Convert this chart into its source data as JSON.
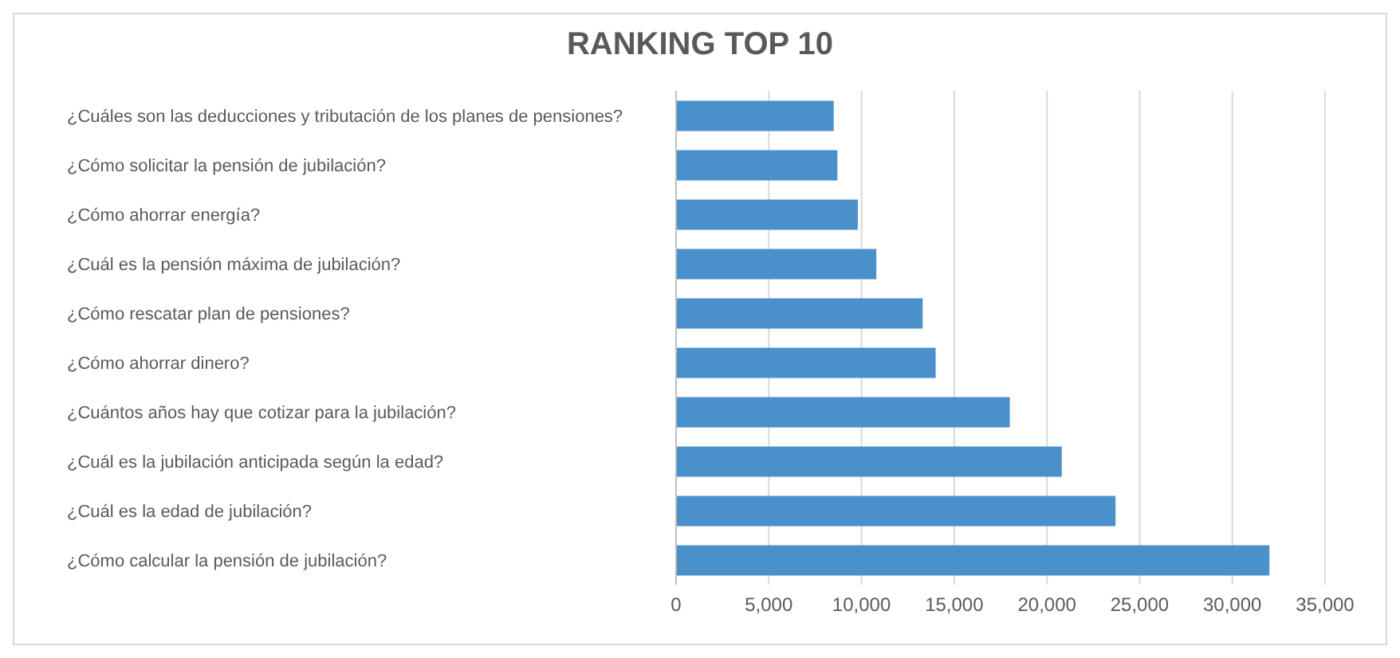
{
  "chart_data": {
    "type": "bar",
    "orientation": "horizontal",
    "title": "RANKING TOP 10",
    "categories": [
      "¿Cuáles son las deducciones y tributación de los planes de pensiones?",
      "¿Cómo solicitar la pensión de jubilación?",
      "¿Cómo ahorrar energía?",
      "¿Cuál es la pensión máxima de jubilación?",
      "¿Cómo rescatar plan de pensiones?",
      "¿Cómo ahorrar dinero?",
      "¿Cuántos años hay que cotizar para la jubilación?",
      "¿Cuál es la jubilación anticipada según la edad?",
      "¿Cuál es la edad de jubilación?",
      "¿Cómo calcular la pensión de jubilación?"
    ],
    "values": [
      8500,
      8700,
      9800,
      10800,
      13300,
      14000,
      18000,
      20800,
      23700,
      32000
    ],
    "color": "#4a90cb",
    "xlim": [
      0,
      35000
    ],
    "xticks": [
      0,
      {
        "value": 5000,
        "label": "5,000"
      },
      {
        "value": 10000,
        "label": "10,000"
      },
      {
        "value": 15000,
        "label": "15,000"
      },
      {
        "value": 20000,
        "label": "20,000"
      },
      {
        "value": 25000,
        "label": "25,000"
      },
      {
        "value": 30000,
        "label": "30,000"
      },
      {
        "value": 35000,
        "label": "35,000"
      }
    ],
    "grid": "x",
    "legend": false
  }
}
